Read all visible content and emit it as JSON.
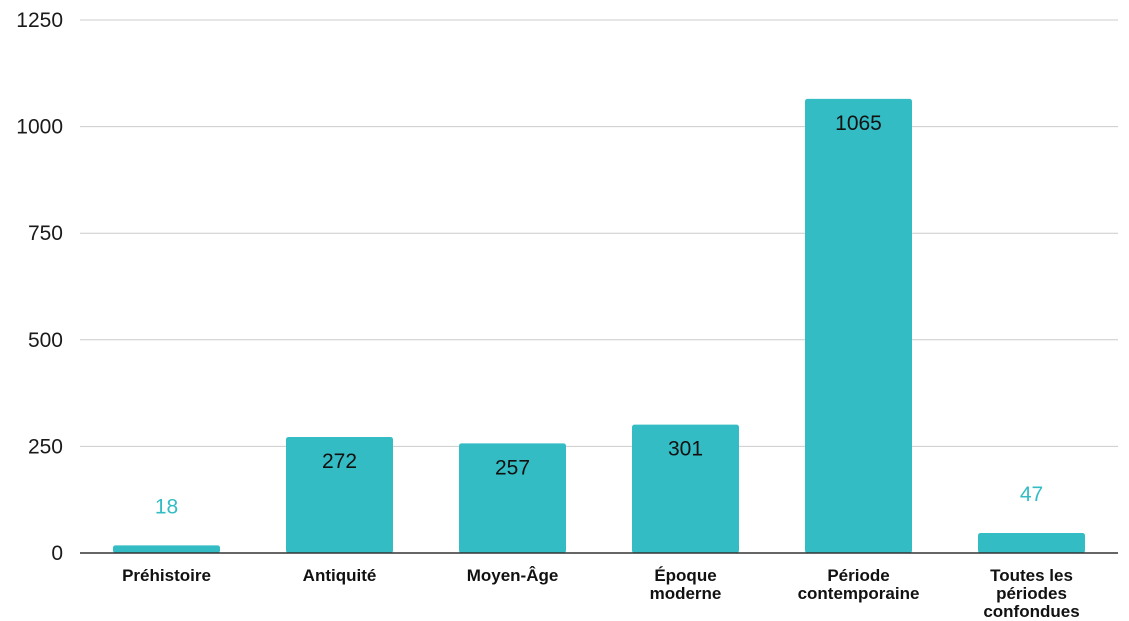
{
  "chart_data": {
    "type": "bar",
    "title": "",
    "xlabel": "",
    "ylabel": "",
    "categories": [
      [
        "Préhistoire"
      ],
      [
        "Antiquité"
      ],
      [
        "Moyen-Âge"
      ],
      [
        "Époque",
        "moderne"
      ],
      [
        "Période",
        "contemporaine"
      ],
      [
        "Toutes les",
        "périodes",
        "confondues"
      ]
    ],
    "values": [
      18,
      272,
      257,
      301,
      1065,
      47
    ],
    "ylim": [
      0,
      1250
    ],
    "yticks": [
      0,
      250,
      500,
      750,
      1000,
      1250
    ],
    "grid": true,
    "legend": "none",
    "colors": {
      "bar": "#34bcc4",
      "grid": "#cccccc",
      "axis": "#333333",
      "label_inside": "#111111",
      "label_outside": "#34bcc4"
    }
  }
}
